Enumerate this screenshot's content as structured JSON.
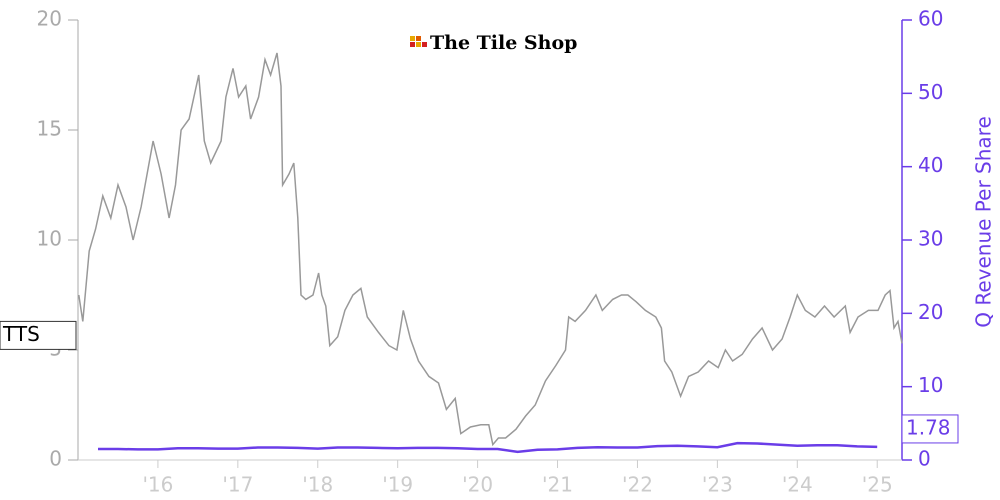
{
  "chart_data": {
    "type": "line",
    "logo": "The Tile Shop",
    "y2label": "Q Revenue Per Share",
    "xlim": [
      2015.0,
      2025.31
    ],
    "xticks": [
      {
        "value": 2016,
        "label": "'16"
      },
      {
        "value": 2017,
        "label": "'17"
      },
      {
        "value": 2018,
        "label": "'18"
      },
      {
        "value": 2019,
        "label": "'19"
      },
      {
        "value": 2020,
        "label": "'20"
      },
      {
        "value": 2021,
        "label": "'21"
      },
      {
        "value": 2022,
        "label": "'22"
      },
      {
        "value": 2023,
        "label": "'23"
      },
      {
        "value": 2024,
        "label": "'24"
      },
      {
        "value": 2025,
        "label": "'25"
      }
    ],
    "ylim": [
      0,
      20
    ],
    "yticks": [
      0,
      5,
      10,
      15,
      20
    ],
    "y2lim": [
      0,
      60
    ],
    "y2ticks": [
      0,
      10,
      20,
      30,
      40,
      50,
      60
    ],
    "series": [
      {
        "name": "TTS",
        "color": "#999999",
        "x": [
          2015.01,
          2015.06,
          2015.14,
          2015.22,
          2015.31,
          2015.41,
          2015.5,
          2015.6,
          2015.69,
          2015.79,
          2015.89,
          2015.94,
          2016.04,
          2016.14,
          2016.22,
          2016.29,
          2016.39,
          2016.51,
          2016.58,
          2016.66,
          2016.79,
          2016.85,
          2016.94,
          2017.01,
          2017.1,
          2017.16,
          2017.26,
          2017.34,
          2017.41,
          2017.49,
          2017.54,
          2017.56,
          2017.64,
          2017.7,
          2017.75,
          2017.79,
          2017.85,
          2017.94,
          2018.01,
          2018.05,
          2018.1,
          2018.15,
          2018.25,
          2018.34,
          2018.44,
          2018.54,
          2018.62,
          2018.76,
          2018.89,
          2018.99,
          2019.07,
          2019.16,
          2019.26,
          2019.39,
          2019.51,
          2019.61,
          2019.72,
          2019.79,
          2019.91,
          2020.04,
          2020.14,
          2020.19,
          2020.26,
          2020.35,
          2020.48,
          2020.6,
          2020.72,
          2020.85,
          2020.98,
          2021.1,
          2021.14,
          2021.22,
          2021.35,
          2021.48,
          2021.56,
          2021.69,
          2021.8,
          2021.88,
          2021.98,
          2022.1,
          2022.23,
          2022.3,
          2022.34,
          2022.43,
          2022.54,
          2022.64,
          2022.76,
          2022.89,
          2023.01,
          2023.1,
          2023.19,
          2023.31,
          2023.44,
          2023.56,
          2023.69,
          2023.81,
          2023.91,
          2024.0,
          2024.1,
          2024.22,
          2024.34,
          2024.46,
          2024.6,
          2024.66,
          2024.76,
          2024.89,
          2025.01,
          2025.1,
          2025.16,
          2025.21,
          2025.26,
          2025.31
        ],
        "values": [
          7.5,
          6.3,
          9.5,
          10.5,
          12.0,
          11.0,
          12.5,
          11.5,
          10.0,
          11.5,
          13.5,
          14.5,
          13.0,
          11.0,
          12.5,
          15.0,
          15.5,
          17.5,
          14.5,
          13.5,
          14.5,
          16.5,
          17.8,
          16.5,
          17.0,
          15.5,
          16.5,
          18.2,
          17.5,
          18.5,
          17.0,
          12.5,
          13.0,
          13.5,
          11.0,
          7.5,
          7.3,
          7.5,
          8.5,
          7.5,
          7.0,
          5.2,
          5.6,
          6.8,
          7.5,
          7.8,
          6.5,
          5.8,
          5.2,
          5.0,
          6.8,
          5.5,
          4.5,
          3.8,
          3.5,
          2.3,
          2.8,
          1.2,
          1.5,
          1.6,
          1.6,
          0.7,
          1.0,
          1.0,
          1.4,
          2.0,
          2.5,
          3.6,
          4.3,
          5.0,
          6.5,
          6.3,
          6.8,
          7.5,
          6.8,
          7.3,
          7.5,
          7.5,
          7.2,
          6.8,
          6.5,
          6.0,
          4.5,
          4.0,
          2.9,
          3.8,
          4.0,
          4.5,
          4.2,
          5.0,
          4.5,
          4.8,
          5.5,
          6.0,
          5.0,
          5.5,
          6.5,
          7.5,
          6.8,
          6.5,
          7.0,
          6.5,
          7.0,
          5.8,
          6.5,
          6.8,
          6.8,
          7.5,
          7.7,
          6.0,
          6.3,
          5.3
        ]
      },
      {
        "name": "Q Revenue Per Share",
        "color": "#6a3de8",
        "axis": "y2",
        "x": [
          2015.25,
          2015.5,
          2015.75,
          2016.0,
          2016.25,
          2016.5,
          2016.75,
          2017.0,
          2017.25,
          2017.5,
          2017.75,
          2018.0,
          2018.25,
          2018.5,
          2018.75,
          2019.0,
          2019.25,
          2019.5,
          2019.75,
          2020.0,
          2020.25,
          2020.5,
          2020.75,
          2021.0,
          2021.25,
          2021.5,
          2021.75,
          2022.0,
          2022.25,
          2022.5,
          2022.75,
          2023.0,
          2023.25,
          2023.5,
          2023.75,
          2024.0,
          2024.25,
          2024.5,
          2024.75,
          2025.0
        ],
        "values": [
          1.5,
          1.5,
          1.45,
          1.45,
          1.6,
          1.6,
          1.55,
          1.55,
          1.7,
          1.7,
          1.65,
          1.55,
          1.7,
          1.7,
          1.65,
          1.6,
          1.65,
          1.65,
          1.6,
          1.5,
          1.5,
          1.1,
          1.4,
          1.45,
          1.65,
          1.75,
          1.7,
          1.7,
          1.9,
          1.95,
          1.85,
          1.75,
          2.3,
          2.25,
          2.1,
          1.95,
          2.0,
          2.0,
          1.85,
          1.78
        ]
      }
    ]
  }
}
